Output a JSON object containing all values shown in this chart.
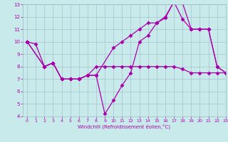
{
  "background_color": "#c8eaea",
  "grid_color": "#a0b8c8",
  "line_color": "#aa00aa",
  "xlim": [
    -0.5,
    23
  ],
  "ylim": [
    4,
    13
  ],
  "xticks": [
    0,
    1,
    2,
    3,
    4,
    5,
    6,
    7,
    8,
    9,
    10,
    11,
    12,
    13,
    14,
    15,
    16,
    17,
    18,
    19,
    20,
    21,
    22,
    23
  ],
  "yticks": [
    4,
    5,
    6,
    7,
    8,
    9,
    10,
    11,
    12,
    13
  ],
  "xlabel": "Windchill (Refroidissement éolien,°C)",
  "series": [
    {
      "x": [
        0,
        1,
        2,
        3,
        4,
        5,
        6,
        7,
        8,
        9,
        10,
        11,
        12,
        13,
        14,
        15,
        16,
        17,
        18,
        19,
        20,
        21,
        22,
        23
      ],
      "y": [
        10,
        9.8,
        8.0,
        8.3,
        7.0,
        7.0,
        7.0,
        7.3,
        7.3,
        4.2,
        5.3,
        6.5,
        7.5,
        10.0,
        10.5,
        11.5,
        11.9,
        13.2,
        13.1,
        11.0,
        11.0,
        11.0,
        8.0,
        7.5
      ]
    },
    {
      "x": [
        0,
        2,
        3,
        4,
        5,
        6,
        7,
        8,
        9,
        10,
        11,
        12,
        13,
        14,
        15,
        16,
        17,
        18,
        19,
        20,
        21,
        22,
        23
      ],
      "y": [
        10,
        8.0,
        8.3,
        7.0,
        7.0,
        7.0,
        7.3,
        8.0,
        8.0,
        8.0,
        8.0,
        8.0,
        8.0,
        8.0,
        8.0,
        8.0,
        8.0,
        7.8,
        7.5,
        7.5,
        7.5,
        7.5,
        7.5
      ]
    },
    {
      "x": [
        0,
        2,
        3,
        4,
        5,
        6,
        7,
        8,
        10,
        11,
        12,
        13,
        14,
        15,
        16,
        17,
        18,
        19,
        20,
        21,
        22,
        23
      ],
      "y": [
        10,
        8.0,
        8.3,
        7.0,
        7.0,
        7.0,
        7.3,
        7.3,
        9.5,
        10.0,
        10.5,
        11.0,
        11.5,
        11.5,
        12.0,
        13.2,
        11.8,
        11.0,
        11.0,
        11.0,
        8.0,
        7.5
      ]
    }
  ],
  "marker": "D",
  "markersize": 2.5,
  "linewidth": 0.9
}
